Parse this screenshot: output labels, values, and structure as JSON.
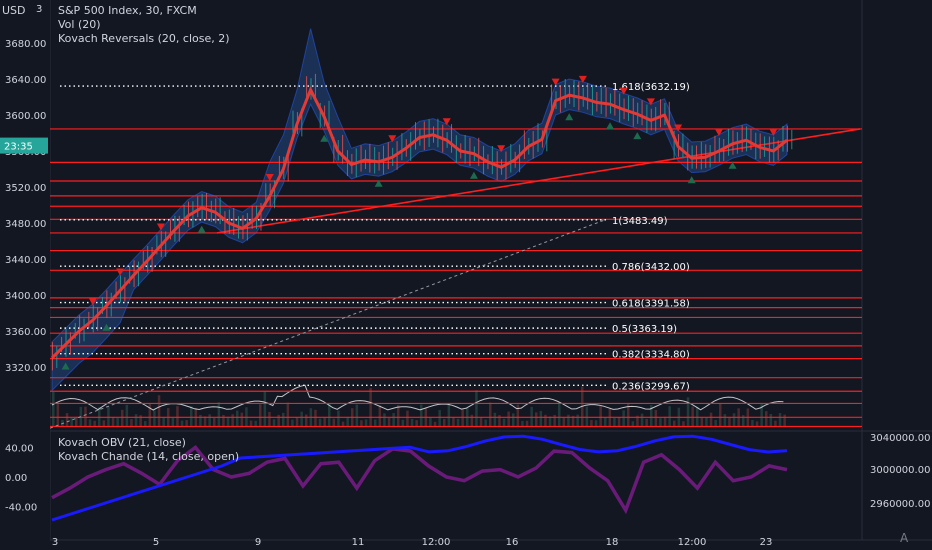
{
  "header": {
    "currency": "USD",
    "symbol_line": "S&P 500 Index, 30, FXCM",
    "vol_line": "Vol (20)",
    "reversal_line": "Kovach Reversals (20, close, 2)",
    "top_clip_label": "3"
  },
  "lower_pane": {
    "line1": "Kovach OBV (21, close)",
    "line2": "Kovach Chande (14, close, open)",
    "left_ticks": [
      "40.00",
      "0.00",
      "-40.00"
    ],
    "right_ticks": [
      "3040000.00",
      "3000000.00",
      "2960000.00"
    ]
  },
  "colors": {
    "background": "#131722",
    "support_lines": "#ff1e1e",
    "price_ma": "#e53935",
    "band": "#1e3a66",
    "band_edge": "#2962ff",
    "obv": "#1a1aff",
    "chande": "#6a1b7a",
    "level_label_bg": "#ff0000",
    "current_price_bg": "#26a69a"
  },
  "current_price_tag": "23:35",
  "footer": {
    "settings_glyph": "A"
  },
  "chart_data": {
    "type": "line",
    "title": "S&P 500 Index, 30, FXCM",
    "x_tick_labels": [
      "3",
      "5",
      "9",
      "11",
      "12:00",
      "16",
      "18",
      "12:00",
      "23"
    ],
    "y_tick_labels": [
      "3680.00",
      "3640.00",
      "3600.00",
      "3560.00",
      "3520.00",
      "3480.00",
      "3440.00",
      "3400.00",
      "3360.00",
      "3320.00"
    ],
    "ylim": [
      3250,
      3720
    ],
    "red_level_labels": [
      "3584.54",
      "3547.32",
      "3526.70",
      "3510.11",
      "3498.63",
      "3484.09",
      "3468.97",
      "3449.37",
      "3427.45",
      "3396.79",
      "3385.96",
      "3375.05",
      "3357.59",
      "3343.44",
      "3329.30",
      "3308.13",
      "3293.03",
      "3279.50",
      "3264.09",
      "3253.95"
    ],
    "fibonacci_levels": [
      {
        "label": "1.618(3632.19)",
        "value": 3632.19
      },
      {
        "label": "1(3483.49)",
        "value": 3483.49
      },
      {
        "label": "0.786(3432.00)",
        "value": 3432.0
      },
      {
        "label": "0.618(3391.58)",
        "value": 3391.58
      },
      {
        "label": "0.5(3363.19)",
        "value": 3363.19
      },
      {
        "label": "0.382(3334.80)",
        "value": 3334.8
      },
      {
        "label": "0.236(3299.67)",
        "value": 3299.67
      }
    ],
    "price_series": [
      3330,
      3345,
      3360,
      3372,
      3388,
      3405,
      3422,
      3438,
      3455,
      3472,
      3488,
      3497,
      3492,
      3480,
      3474,
      3485,
      3510,
      3540,
      3590,
      3628,
      3598,
      3560,
      3545,
      3550,
      3548,
      3553,
      3563,
      3575,
      3578,
      3572,
      3560,
      3557,
      3548,
      3542,
      3550,
      3565,
      3573,
      3616,
      3622,
      3619,
      3614,
      3612,
      3606,
      3601,
      3594,
      3600,
      3565,
      3552,
      3553,
      3560,
      3568,
      3572,
      3564,
      3560,
      3572
    ],
    "chande_values": [
      -28,
      -15,
      0,
      10,
      18,
      5,
      -10,
      22,
      40,
      10,
      0,
      5,
      20,
      25,
      -12,
      18,
      20,
      -15,
      22,
      38,
      35,
      15,
      0,
      -5,
      8,
      10,
      0,
      12,
      35,
      33,
      12,
      -5,
      -45,
      20,
      30,
      10,
      -15,
      20,
      -5,
      0,
      15,
      10
    ]
  }
}
